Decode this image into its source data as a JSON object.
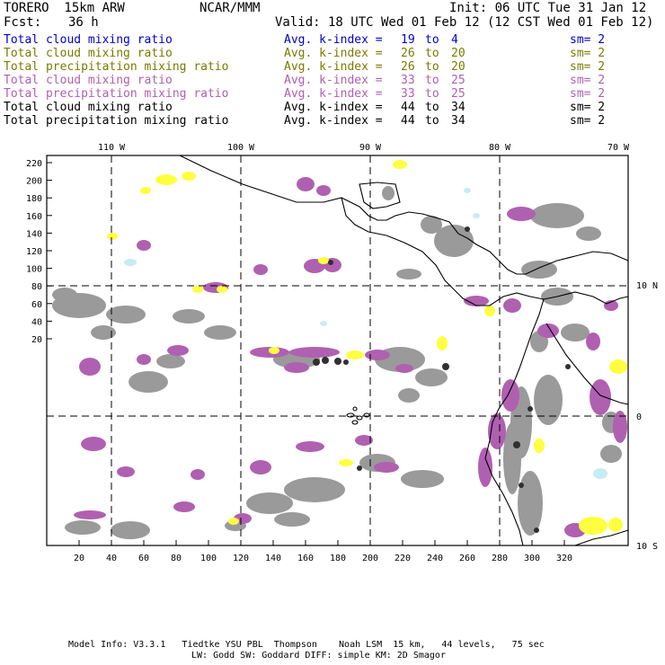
{
  "header": {
    "model": "TORERO  15km ARW",
    "center": "NCAR/MMM",
    "init": "Init: 06 UTC Tue 31 Jan 12",
    "fcst_label": "Fcst:",
    "fcst_value": "36 h",
    "valid": "Valid: 18 UTC Wed 01 Feb 12 (12 CST Wed 01 Feb 12)"
  },
  "legend": [
    {
      "field": "Total cloud mixing ratio",
      "index": "Avg. k-index =",
      "from": "19",
      "to_word": "to",
      "to": "4",
      "sm": "sm= 2",
      "color": "#0000c8"
    },
    {
      "field": "Total cloud mixing ratio",
      "index": "Avg. k-index =",
      "from": "26",
      "to_word": "to",
      "to": "20",
      "sm": "sm= 2",
      "color": "#7a7a00"
    },
    {
      "field": "Total precipitation mixing ratio",
      "index": "Avg. k-index =",
      "from": "26",
      "to_word": "to",
      "to": "20",
      "sm": "sm= 2",
      "color": "#7a7a00"
    },
    {
      "field": "Total cloud mixing ratio",
      "index": "Avg. k-index =",
      "from": "33",
      "to_word": "to",
      "to": "25",
      "sm": "sm= 2",
      "color": "#b060b0"
    },
    {
      "field": "Total precipitation mixing ratio",
      "index": "Avg. k-index =",
      "from": "33",
      "to_word": "to",
      "to": "25",
      "sm": "sm= 2",
      "color": "#b060b0"
    },
    {
      "field": "Total cloud mixing ratio",
      "index": "Avg. k-index =",
      "from": "44",
      "to_word": "to",
      "to": "34",
      "sm": "sm= 2",
      "color": "#000000"
    },
    {
      "field": "Total precipitation mixing ratio",
      "index": "Avg. k-index =",
      "from": "44",
      "to_word": "to",
      "to": "34",
      "sm": "sm= 2",
      "color": "#000000"
    }
  ],
  "map": {
    "lon_labels": [
      "110 W",
      "100 W",
      "90 W",
      "80 W",
      "70 W"
    ],
    "lat_labels": [
      "10 N",
      "0",
      "10 S"
    ],
    "x_ticks": [
      "20",
      "40",
      "60",
      "80",
      "100",
      "120",
      "140",
      "160",
      "180",
      "200",
      "220",
      "240",
      "260",
      "280",
      "300",
      "320"
    ],
    "y_ticks": [
      "220",
      "200",
      "180",
      "160",
      "140",
      "120",
      "100",
      "80",
      "60",
      "40",
      "20"
    ],
    "colors": {
      "coast": "#000000",
      "grid": "#000000",
      "gray": "#9a9a9a",
      "dark": "#303030",
      "purple": "#b060b0",
      "yellow": "#ffff40",
      "cyan": "#c8ecf4"
    }
  },
  "footer": {
    "line1": "Model Info: V3.3.1   Tiedtke YSU PBL  Thompson    Noah LSM  15 km,   44 levels,   75 sec",
    "line2": "LW: Godd SW: Goddard DIFF: simple KM: 2D Smagor"
  }
}
